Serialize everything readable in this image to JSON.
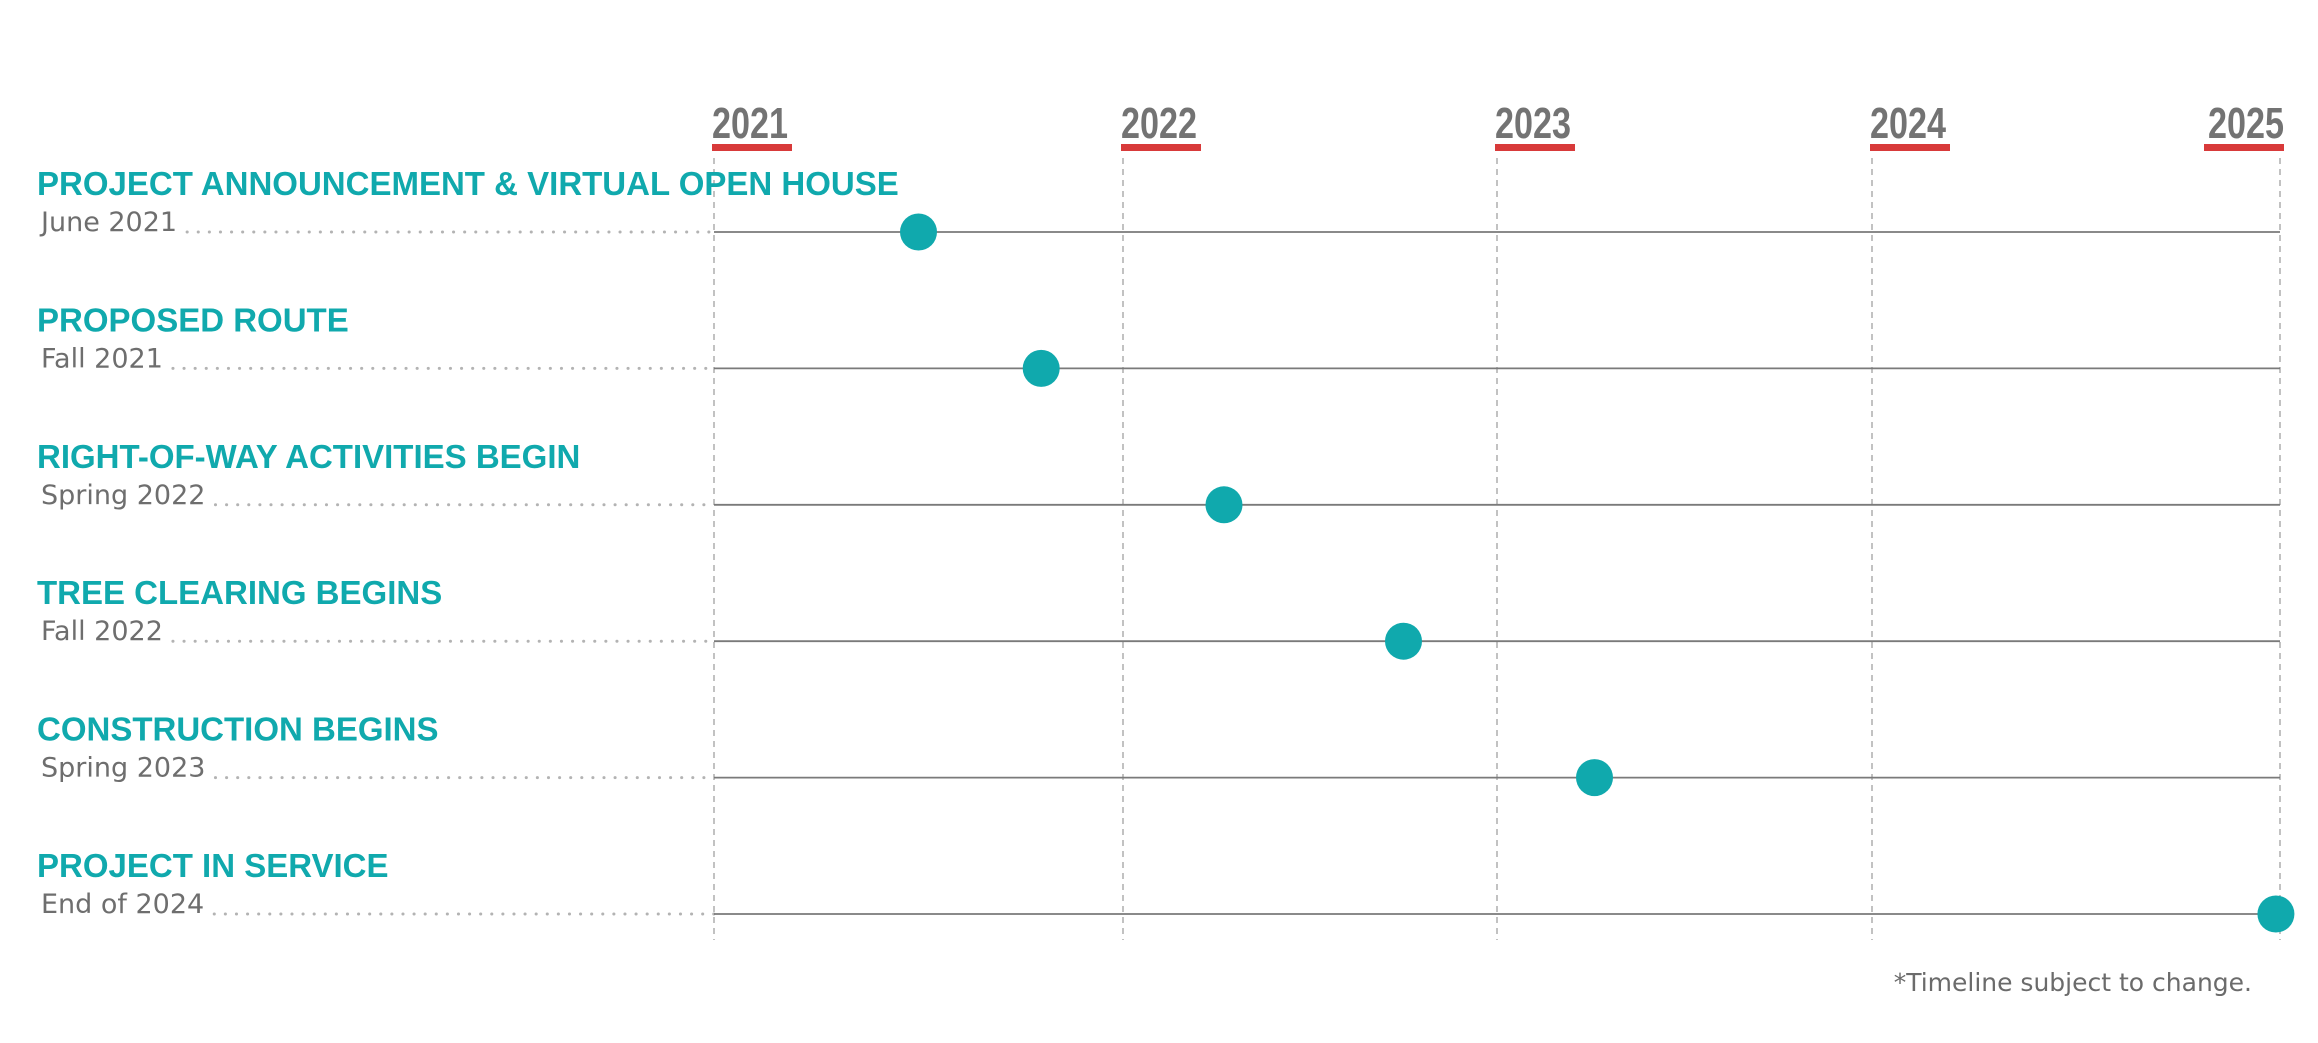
{
  "chart_data": {
    "type": "scatter",
    "x_ticks": [
      "2021",
      "2022",
      "2023",
      "2024",
      "2025"
    ],
    "x_range": [
      2021.0,
      2025.1
    ],
    "grid": true,
    "colors": {
      "accent": "#10a9ad",
      "year_underline": "#d83a3a",
      "axis_text": "#737373",
      "date_text": "#6e6e6e",
      "line": "#7a7a7a",
      "grid": "#b3b3b3"
    },
    "milestones": [
      {
        "label": "PROJECT ANNOUNCEMENT & VIRTUAL OPEN HOUSE",
        "date": "June 2021",
        "x": 2021.5
      },
      {
        "label": "PROPOSED ROUTE",
        "date": "Fall 2021",
        "x": 2021.8
      },
      {
        "label": "RIGHT-OF-WAY ACTIVITIES BEGIN",
        "date": "Spring 2022",
        "x": 2022.27
      },
      {
        "label": "TREE CLEARING BEGINS",
        "date": "Fall 2022",
        "x": 2022.75
      },
      {
        "label": "CONSTRUCTION BEGINS",
        "date": "Spring 2023",
        "x": 2023.26
      },
      {
        "label": "PROJECT IN SERVICE",
        "date": "End of 2024",
        "x": 2024.99
      }
    ]
  },
  "footnote": "*Timeline subject to change."
}
